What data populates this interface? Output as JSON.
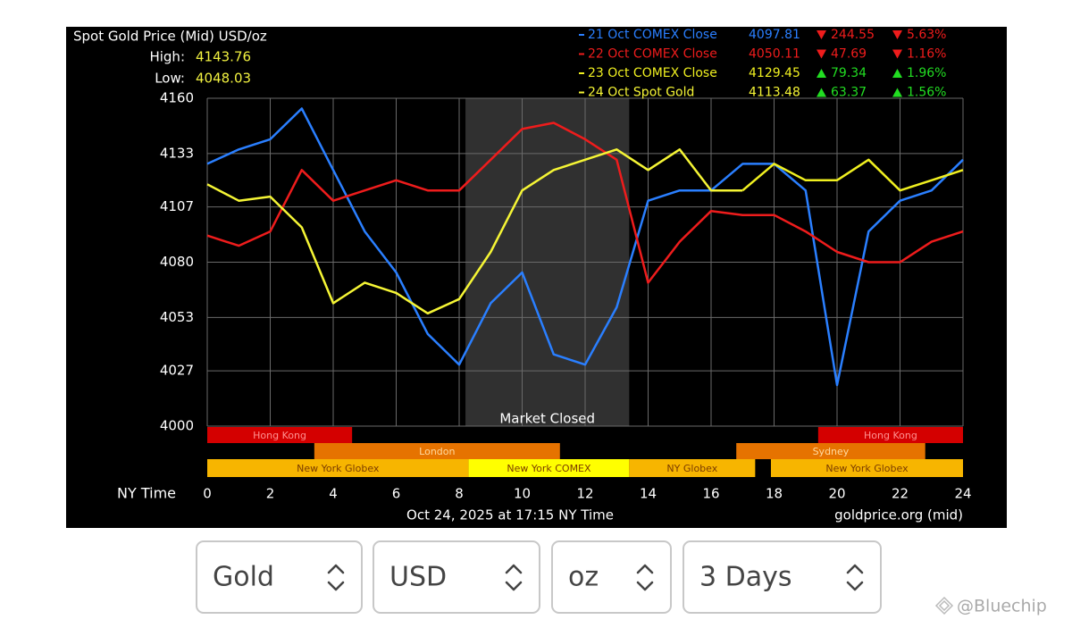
{
  "chart_data": {
    "type": "line",
    "title": "Spot Gold Price (Mid) USD/oz",
    "high": {
      "label": "High:",
      "value": 4143.76
    },
    "low": {
      "label": "Low:",
      "value": 4048.03
    },
    "x_label": "NY Time",
    "footer": "Oct 24, 2025 at 17:15 NY Time",
    "source": "goldprice.org (mid)",
    "xlim": [
      0,
      24
    ],
    "xticks": [
      0,
      2,
      4,
      6,
      8,
      10,
      12,
      14,
      16,
      18,
      20,
      22,
      24
    ],
    "ylim": [
      4000,
      4160
    ],
    "yticks": [
      4000,
      4027,
      4053,
      4080,
      4107,
      4133,
      4160
    ],
    "grid": true,
    "x": [
      0,
      1,
      2,
      3,
      4,
      5,
      6,
      7,
      8,
      9,
      10,
      11,
      12,
      13,
      14,
      15,
      16,
      17,
      18,
      19,
      20,
      21,
      22,
      23,
      24
    ],
    "series": [
      {
        "name": "21 Oct COMEX Close",
        "color": "#2a7fff",
        "close": 4097.81,
        "change": 244.55,
        "direction": "down",
        "pct": "5.63%",
        "values": [
          4128,
          4135,
          4140,
          4155,
          4125,
          4095,
          4075,
          4045,
          4030,
          4060,
          4075,
          4035,
          4030,
          4058,
          4110,
          4115,
          4115,
          4128,
          4128,
          4115,
          4020,
          4095,
          4110,
          4115,
          4130
        ]
      },
      {
        "name": "22 Oct COMEX Close",
        "color": "#ee1c1c",
        "close": 4050.11,
        "change": 47.69,
        "direction": "down",
        "pct": "1.16%",
        "values": [
          4093,
          4088,
          4095,
          4125,
          4110,
          4115,
          4120,
          4115,
          4115,
          4130,
          4145,
          4148,
          4140,
          4130,
          4070,
          4090,
          4105,
          4103,
          4103,
          4095,
          4085,
          4080,
          4080,
          4090,
          4095
        ]
      },
      {
        "name": "23 Oct COMEX Close",
        "color": "#f0f020",
        "close": 4129.45,
        "change": 79.34,
        "direction": "up",
        "pct": "1.96%",
        "values": [
          null,
          null,
          null,
          null,
          null,
          null,
          null,
          null,
          null,
          null,
          null,
          null,
          null,
          null,
          null,
          null,
          null,
          4115,
          4128,
          4120,
          4120,
          4130,
          4115,
          4120,
          4125
        ]
      },
      {
        "name": "24 Oct Spot Gold",
        "color": "#f5f535",
        "close": 4113.48,
        "change": 63.37,
        "direction": "up",
        "pct": "1.56%",
        "values": [
          4118,
          4110,
          4112,
          4097,
          4060,
          4070,
          4065,
          4055,
          4062,
          4085,
          4115,
          4125,
          4130,
          4135,
          4125,
          4135,
          4115,
          4115,
          null,
          null,
          null,
          null,
          null,
          null,
          null
        ]
      }
    ],
    "closed": {
      "label": "Market Closed",
      "start": 8.2,
      "end": 13.4
    },
    "sessions": [
      {
        "label": "Hong Kong",
        "start": 0,
        "end": 4.6,
        "row": 0,
        "color": "#d40000",
        "text_color": "#ff9090"
      },
      {
        "label": "Hong Kong",
        "start": 19.4,
        "end": 24,
        "row": 0,
        "color": "#d40000",
        "text_color": "#ff9090"
      },
      {
        "label": "London",
        "start": 3.4,
        "end": 11.2,
        "row": 1,
        "color": "#e67300",
        "text_color": "#ffd9a0"
      },
      {
        "label": "Sydney",
        "start": 16.8,
        "end": 22.8,
        "row": 1,
        "color": "#e67300",
        "text_color": "#ffd9a0"
      },
      {
        "label": "New York Globex",
        "start": 0,
        "end": 8.3,
        "row": 2,
        "color": "#f7b500",
        "text_color": "#7a3b00"
      },
      {
        "label": "New York COMEX",
        "start": 8.3,
        "end": 13.4,
        "row": 2,
        "color": "#ffff00",
        "text_color": "#7a3b00"
      },
      {
        "label": "NY Globex",
        "start": 13.4,
        "end": 17.4,
        "row": 2,
        "color": "#f7b500",
        "text_color": "#7a3b00"
      },
      {
        "label": "New York Globex",
        "start": 17.9,
        "end": 24,
        "row": 2,
        "color": "#f7b500",
        "text_color": "#7a3b00"
      }
    ]
  },
  "controls": [
    "Gold",
    "USD",
    "oz",
    "3 Days"
  ],
  "watermark": "@Bluechip"
}
